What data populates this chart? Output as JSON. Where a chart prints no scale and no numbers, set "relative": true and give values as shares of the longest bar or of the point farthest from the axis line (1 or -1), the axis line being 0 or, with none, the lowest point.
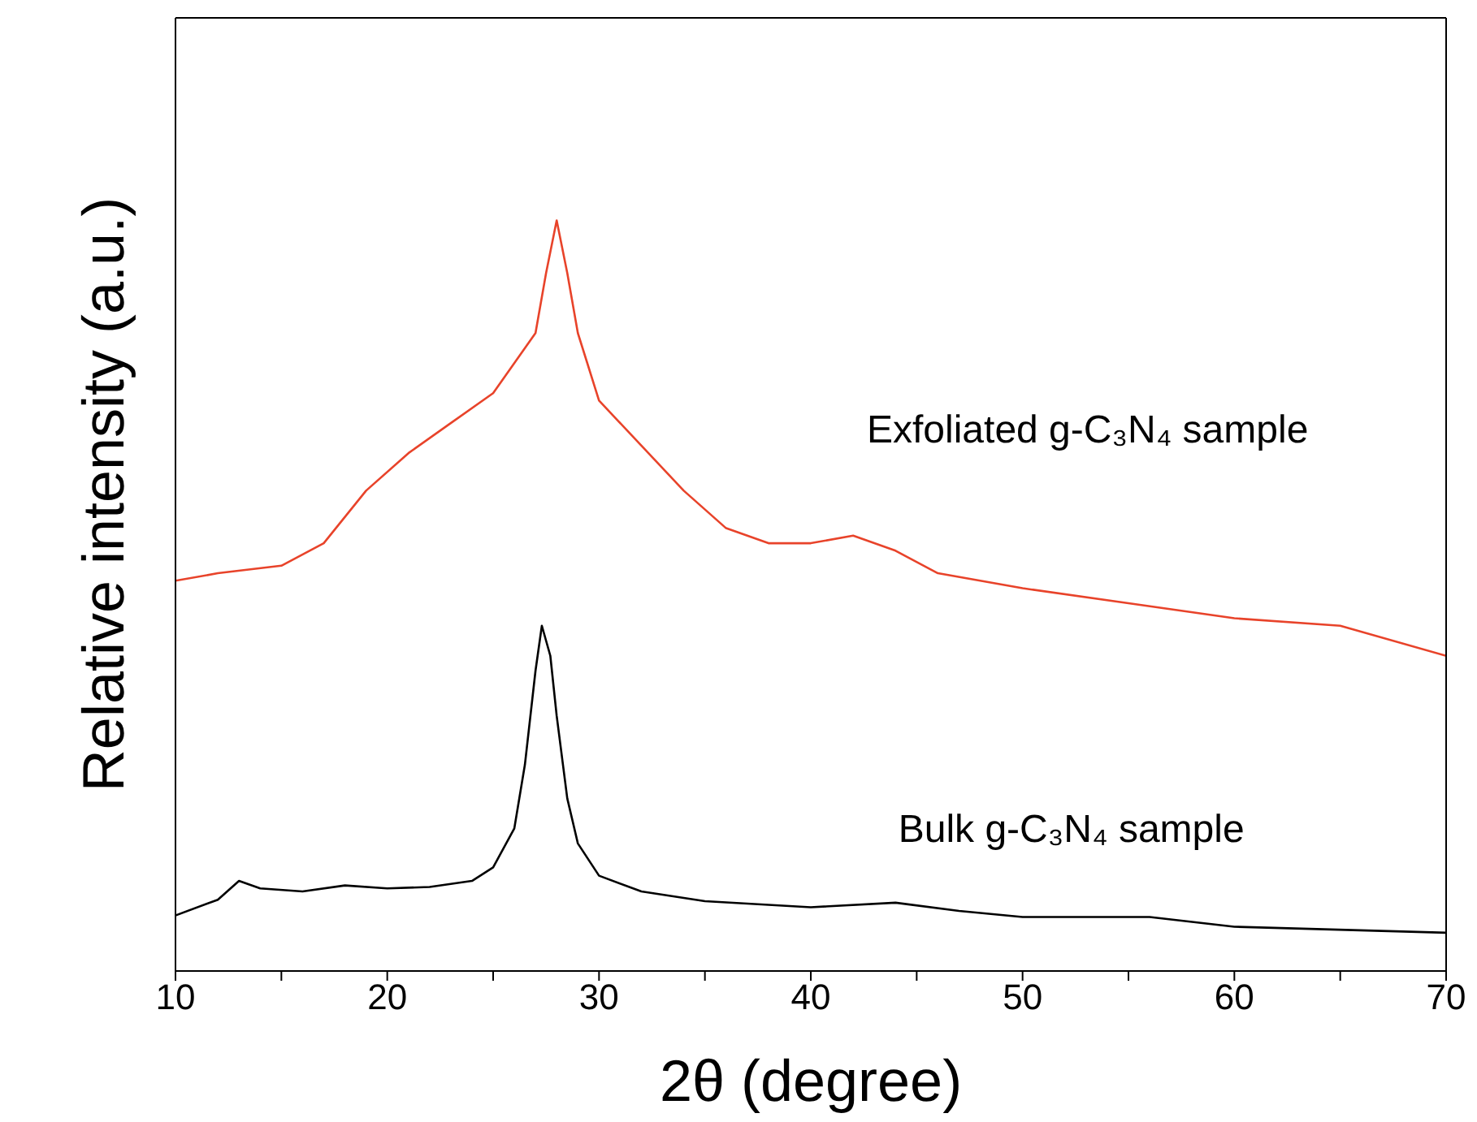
{
  "chart_data": {
    "type": "line",
    "xlabel": "2θ (degree)",
    "ylabel": "Relative intensity (a.u.)",
    "relative": true,
    "xlim": [
      10,
      70
    ],
    "xticks": [
      10,
      {
        "value": 15,
        "label": null
      },
      20,
      {
        "value": 25,
        "label": null
      },
      30,
      {
        "value": 35,
        "label": null
      },
      40,
      {
        "value": 45,
        "label": null
      },
      50,
      {
        "value": 55,
        "label": null
      },
      60,
      {
        "value": 65,
        "label": null
      },
      70
    ],
    "marker": "none",
    "line_style": "solid",
    "series": [
      {
        "name": "Exfoliated g-C₃N₄ sample",
        "color": "#e8432a",
        "x": [
          10,
          12,
          15,
          17,
          19,
          21,
          23,
          25,
          26,
          27,
          27.5,
          28,
          28.5,
          29,
          30,
          32,
          34,
          36,
          38,
          40,
          42,
          44,
          46,
          50,
          55,
          60,
          65,
          70
        ],
        "values": [
          0.52,
          0.53,
          0.54,
          0.57,
          0.64,
          0.69,
          0.73,
          0.77,
          0.81,
          0.85,
          0.93,
          1.0,
          0.93,
          0.85,
          0.76,
          0.7,
          0.64,
          0.59,
          0.57,
          0.57,
          0.58,
          0.56,
          0.53,
          0.51,
          0.49,
          0.47,
          0.46,
          0.42
        ]
      },
      {
        "name": "Bulk g-C₃N₄ sample",
        "color": "#000000",
        "x": [
          10,
          12,
          13,
          14,
          16,
          18,
          20,
          22,
          24,
          25,
          26,
          26.5,
          27,
          27.3,
          27.7,
          28,
          28.5,
          29,
          30,
          32,
          35,
          40,
          44,
          47,
          50,
          56,
          60,
          70
        ],
        "values": [
          0.074,
          0.095,
          0.12,
          0.11,
          0.106,
          0.114,
          0.11,
          0.112,
          0.12,
          0.138,
          0.19,
          0.275,
          0.4,
          0.46,
          0.42,
          0.34,
          0.23,
          0.17,
          0.127,
          0.106,
          0.093,
          0.085,
          0.091,
          0.08,
          0.072,
          0.072,
          0.059,
          0.051
        ]
      }
    ]
  }
}
